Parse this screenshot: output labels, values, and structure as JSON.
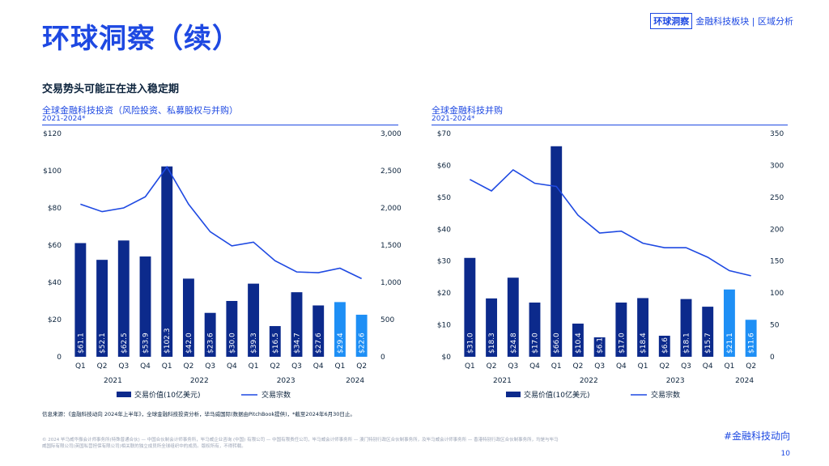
{
  "page": {
    "title": "环球洞察（续）",
    "tag_box": "环球洞察",
    "tag_rest": "金融科技板块 | 区域分析",
    "subtitle": "交易势头可能正在进入稳定期",
    "source": "信息来源：《金融科技动向 2024年上半年》，全球金融科技投资分析，毕马威国际(数据由PitchBook提供)，*截至2024年6月30日止。",
    "legal": "© 2024 毕马威华振会计师事务所(特殊普通合伙) — 中国合伙制会计师事务所，毕马威企业咨询 (中国) 有限公司 — 中国有限责任公司，毕马威会计师事务所 — 澳门特别行政区合伙制事务所，及毕马威会计师事务所 — 香港特别行政区合伙制事务所，均是与毕马威国际有限公司(英国私营担保有限公司)相关联的独立成员所全球组织中的成员。版权所有，不得转载。",
    "hashtag": "#金融科技动向",
    "page_number": "10"
  },
  "chart_data": [
    {
      "type": "bar",
      "title": "全球金融科技投资（风险投资、私募股权与并购）",
      "subtitle": "2021-2024*",
      "categories": [
        "Q1",
        "Q2",
        "Q3",
        "Q4",
        "Q1",
        "Q2",
        "Q3",
        "Q4",
        "Q1",
        "Q2",
        "Q3",
        "Q4",
        "Q1",
        "Q2"
      ],
      "years": [
        "2021",
        "2022",
        "2023",
        "2024"
      ],
      "series": [
        {
          "name": "交易价值(10亿美元)",
          "kind": "bar",
          "axis": "left",
          "values": [
            61.1,
            52.1,
            62.5,
            53.9,
            102.3,
            42.0,
            23.6,
            30.0,
            39.3,
            16.5,
            34.7,
            27.6,
            29.4,
            22.6
          ],
          "labels": [
            "$61.1",
            "$52.1",
            "$62.5",
            "$53.9",
            "$102.3",
            "$42.0",
            "$23.6",
            "$30.0",
            "$39.3",
            "$16.5",
            "$34.7",
            "$27.6",
            "$29.4",
            "$22.6"
          ]
        },
        {
          "name": "交易宗数",
          "kind": "line",
          "axis": "right",
          "values": [
            2050,
            1950,
            2000,
            2150,
            2550,
            2050,
            1680,
            1490,
            1540,
            1290,
            1140,
            1130,
            1190,
            1050
          ]
        }
      ],
      "left_ticks": [
        "$120",
        "$100",
        "$80",
        "$60",
        "$40",
        "$20",
        "0"
      ],
      "right_ticks": [
        "3,000",
        "2,500",
        "2,000",
        "1,500",
        "1,000",
        "500",
        "0"
      ],
      "ylim_left": [
        0,
        120
      ],
      "ylim_right": [
        0,
        3000
      ],
      "colors": {
        "bar": "#0c2a8c",
        "bar_highlight": "#1e8ff5",
        "line": "#1e49e2"
      }
    },
    {
      "type": "bar",
      "title": "全球金融科技并购",
      "subtitle": "2021-2024*",
      "categories": [
        "Q1",
        "Q2",
        "Q3",
        "Q4",
        "Q1",
        "Q2",
        "Q3",
        "Q4",
        "Q1",
        "Q2",
        "Q3",
        "Q4",
        "Q1",
        "Q2"
      ],
      "years": [
        "2021",
        "2022",
        "2023",
        "2024"
      ],
      "series": [
        {
          "name": "交易价值(10亿美元)",
          "kind": "bar",
          "axis": "left",
          "values": [
            31.0,
            18.3,
            24.8,
            17.0,
            66.0,
            10.4,
            6.1,
            17.0,
            18.4,
            6.6,
            18.1,
            15.7,
            21.1,
            11.6
          ],
          "labels": [
            "$31.0",
            "$18.3",
            "$24.8",
            "$17.0",
            "$66.0",
            "$10.4",
            "$6.1",
            "$17.0",
            "$18.4",
            "$6.6",
            "$18.1",
            "$15.7",
            "$21.1",
            "$11.6"
          ]
        },
        {
          "name": "交易宗数",
          "kind": "line",
          "axis": "right",
          "values": [
            278,
            260,
            293,
            272,
            267,
            222,
            194,
            197,
            178,
            171,
            171,
            156,
            135,
            127
          ]
        }
      ],
      "left_ticks": [
        "$70",
        "$60",
        "$50",
        "$40",
        "$30",
        "$20",
        "$10",
        "$0"
      ],
      "right_ticks": [
        "350",
        "300",
        "250",
        "200",
        "150",
        "100",
        "50",
        "0"
      ],
      "ylim_left": [
        0,
        70
      ],
      "ylim_right": [
        0,
        350
      ],
      "colors": {
        "bar": "#0c2a8c",
        "bar_highlight": "#1e8ff5",
        "line": "#1e49e2"
      }
    }
  ]
}
